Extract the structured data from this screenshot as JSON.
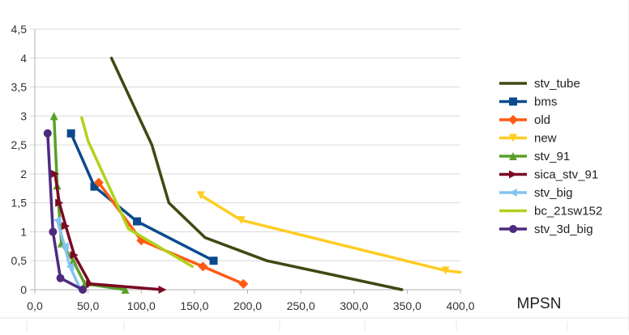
{
  "chart_data": {
    "type": "line",
    "title": "",
    "xlabel": "MPSN",
    "ylabel": "",
    "xlim": [
      0,
      400
    ],
    "ylim": [
      0,
      4.5
    ],
    "x_ticks": [
      "0,0",
      "50,0",
      "100,0",
      "150,0",
      "200,0",
      "250,0",
      "300,0",
      "350,0",
      "400,0"
    ],
    "y_ticks": [
      "0",
      "0,5",
      "1",
      "1,5",
      "2",
      "2,5",
      "3",
      "3,5",
      "4",
      "4,5"
    ],
    "grid": "horizontal",
    "legend_position": "right",
    "series": [
      {
        "name": "stv_tube",
        "color": "#3d4a13",
        "marker": "bowtie",
        "points": [
          [
            72,
            4.0
          ],
          [
            110,
            2.5
          ],
          [
            126,
            1.5
          ],
          [
            160,
            0.9
          ],
          [
            218,
            0.5
          ],
          [
            345,
            0.0
          ]
        ]
      },
      {
        "name": "bms",
        "color": "#0a4a8c",
        "marker": "square",
        "points": [
          [
            34,
            2.7
          ],
          [
            56,
            1.78
          ],
          [
            96,
            1.18
          ],
          [
            168,
            0.5
          ]
        ]
      },
      {
        "name": "old",
        "color": "#ff5a14",
        "marker": "diamond",
        "points": [
          [
            60,
            1.85
          ],
          [
            100,
            0.85
          ],
          [
            158,
            0.4
          ],
          [
            196,
            0.1
          ]
        ]
      },
      {
        "name": "new",
        "color": "#ffcc22",
        "marker": "triangle-down",
        "points": [
          [
            156,
            1.63
          ],
          [
            194,
            1.2
          ],
          [
            386,
            0.33
          ],
          [
            400,
            0.3
          ]
        ]
      },
      {
        "name": "stv_91",
        "color": "#5aa028",
        "marker": "triangle-up",
        "points": [
          [
            18,
            3.0
          ],
          [
            21,
            1.8
          ],
          [
            25,
            0.8
          ],
          [
            36,
            0.5
          ],
          [
            47,
            0.1
          ],
          [
            85,
            0.0
          ]
        ]
      },
      {
        "name": "sica_stv_91",
        "color": "#7a0a24",
        "marker": "triangle-right",
        "points": [
          [
            19,
            2.0
          ],
          [
            23,
            1.5
          ],
          [
            29,
            1.1
          ],
          [
            37,
            0.6
          ],
          [
            52,
            0.1
          ],
          [
            120,
            0.0
          ]
        ]
      },
      {
        "name": "stv_big",
        "color": "#86c4f0",
        "marker": "triangle-left",
        "points": [
          [
            21,
            1.2
          ],
          [
            28,
            0.75
          ],
          [
            33,
            0.4
          ],
          [
            43,
            0.0
          ]
        ]
      },
      {
        "name": "bc_21sw152",
        "color": "#b0d21a",
        "marker": "bowtie",
        "points": [
          [
            44,
            2.97
          ],
          [
            50,
            2.57
          ],
          [
            88,
            1.05
          ],
          [
            148,
            0.4
          ]
        ]
      },
      {
        "name": "stv_3d_big",
        "color": "#4e2a7e",
        "marker": "circle",
        "points": [
          [
            12,
            2.7
          ],
          [
            17,
            1.0
          ],
          [
            24,
            0.2
          ],
          [
            45,
            0.0
          ]
        ]
      }
    ]
  }
}
